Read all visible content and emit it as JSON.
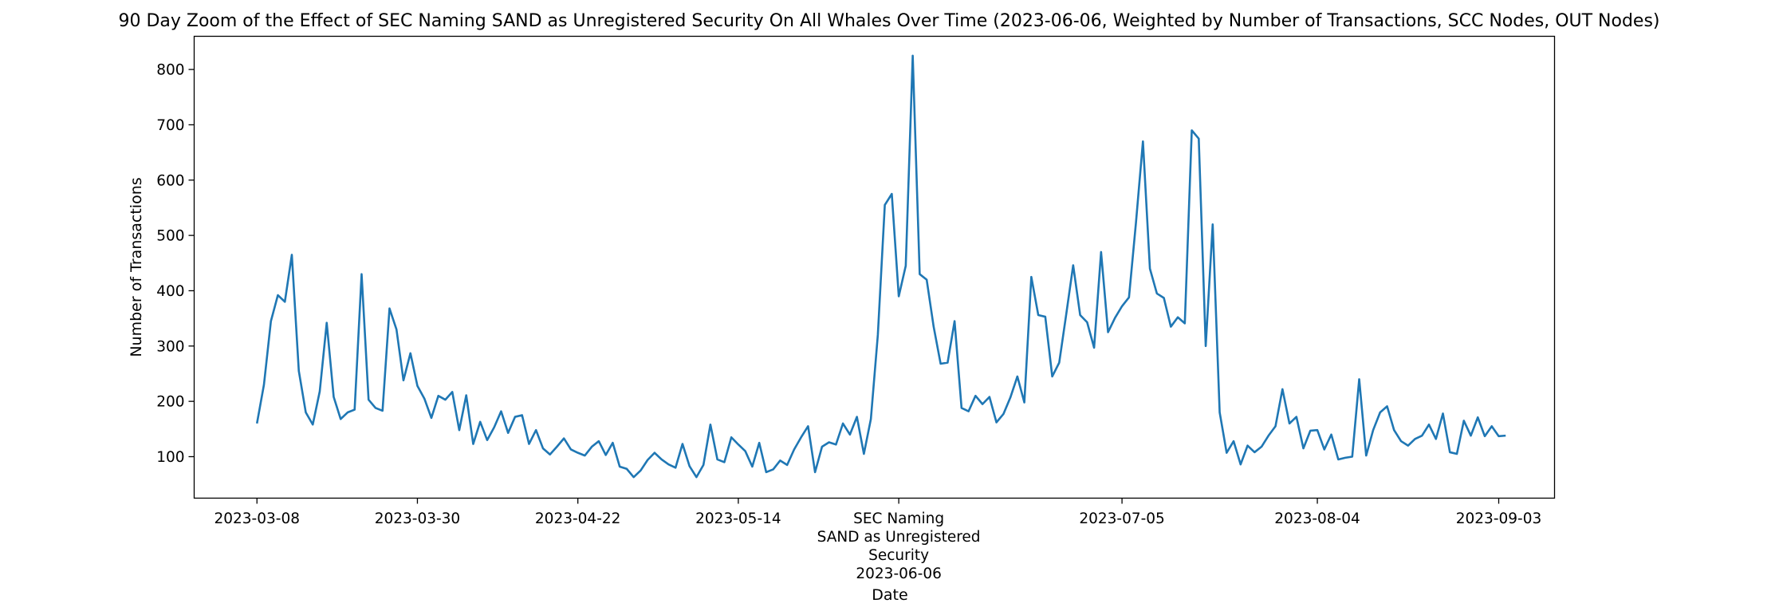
{
  "chart_data": {
    "type": "line",
    "title": "90 Day Zoom of the Effect of SEC Naming SAND as Unregistered Security On All Whales Over Time (2023-06-06, Weighted by Number of Transactions, SCC Nodes, OUT Nodes)",
    "xlabel": "Date",
    "ylabel": "Number of Transactions",
    "ylim": [
      25,
      860
    ],
    "xlim": [
      -9,
      186
    ],
    "grid": false,
    "line_color": "#1f77b4",
    "x_ticks": [
      {
        "day": 0,
        "label": "2023-03-08"
      },
      {
        "day": 23,
        "label": "2023-03-30"
      },
      {
        "day": 46,
        "label": "2023-04-22"
      },
      {
        "day": 69,
        "label": "2023-05-14"
      },
      {
        "day": 92,
        "label": "SEC Naming\nSAND as Unregistered\nSecurity\n2023-06-06"
      },
      {
        "day": 124,
        "label": "2023-07-05"
      },
      {
        "day": 152,
        "label": "2023-08-04"
      },
      {
        "day": 178,
        "label": "2023-09-03"
      }
    ],
    "y_ticks": [
      {
        "value": 100,
        "label": "100"
      },
      {
        "value": 200,
        "label": "200"
      },
      {
        "value": 300,
        "label": "300"
      },
      {
        "value": 400,
        "label": "400"
      },
      {
        "value": 500,
        "label": "500"
      },
      {
        "value": 600,
        "label": "600"
      },
      {
        "value": 700,
        "label": "700"
      },
      {
        "value": 800,
        "label": "800"
      }
    ],
    "series": [
      {
        "name": "All Whales",
        "values": [
          160,
          230,
          345,
          392,
          380,
          465,
          255,
          180,
          158,
          218,
          342,
          208,
          168,
          180,
          185,
          430,
          203,
          188,
          183,
          368,
          330,
          238,
          287,
          228,
          205,
          170,
          210,
          203,
          217,
          148,
          211,
          123,
          163,
          130,
          153,
          182,
          143,
          172,
          175,
          123,
          148,
          115,
          104,
          118,
          133,
          113,
          107,
          102,
          118,
          128,
          103,
          125,
          82,
          78,
          63,
          75,
          94,
          107,
          95,
          86,
          80,
          123,
          83,
          63,
          85,
          158,
          95,
          90,
          135,
          122,
          110,
          82,
          125,
          72,
          77,
          93,
          85,
          113,
          135,
          155,
          72,
          118,
          126,
          122,
          160,
          140,
          172,
          105,
          168,
          320,
          555,
          575,
          390,
          445,
          825,
          430,
          420,
          335,
          268,
          270,
          345,
          188,
          182,
          210,
          195,
          208,
          162,
          177,
          207,
          245,
          198,
          425,
          356,
          353,
          245,
          270,
          357,
          446,
          356,
          343,
          297,
          470,
          325,
          351,
          372,
          388,
          523,
          670,
          440,
          395,
          387,
          335,
          352,
          341,
          690,
          675,
          300,
          520,
          180,
          107,
          128,
          86,
          120,
          108,
          118,
          138,
          155,
          222,
          160,
          172,
          115,
          147,
          148,
          113,
          140,
          95,
          98,
          100,
          240,
          102,
          148,
          180,
          191,
          148,
          128,
          120,
          132,
          138,
          158,
          132,
          178,
          108,
          105,
          165,
          138,
          171,
          137,
          155,
          137,
          138
        ]
      }
    ]
  }
}
